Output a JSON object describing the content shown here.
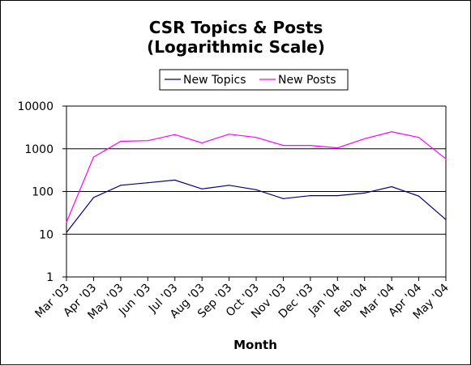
{
  "chart_data": {
    "type": "line",
    "title_line1": "CSR Topics & Posts",
    "title_line2": "(Logarithmic Scale)",
    "xlabel": "Month",
    "ylabel": "",
    "yscale": "log",
    "ylim": [
      1,
      10000
    ],
    "yticks": [
      "1",
      "10",
      "100",
      "1000",
      "10000"
    ],
    "grid": "horizontal major",
    "legend_position": "top-center",
    "categories": [
      "Mar '03",
      "Apr '03",
      "May '03",
      "Jun '03",
      "Jul '03",
      "Aug '03",
      "Sep '03",
      "Oct '03",
      "Nov '03",
      "Dec '03",
      "Jan '04",
      "Feb '04",
      "Mar '04",
      "Apr '04",
      "May '04"
    ],
    "series": [
      {
        "name": "New Topics",
        "color": "#000080",
        "values": [
          11,
          72,
          140,
          160,
          185,
          115,
          140,
          110,
          68,
          80,
          80,
          92,
          130,
          78,
          22
        ]
      },
      {
        "name": "New Posts",
        "color": "#ff00ff",
        "values": [
          19,
          640,
          1500,
          1550,
          2150,
          1370,
          2200,
          1850,
          1200,
          1200,
          1050,
          1720,
          2500,
          1850,
          580
        ]
      }
    ]
  }
}
